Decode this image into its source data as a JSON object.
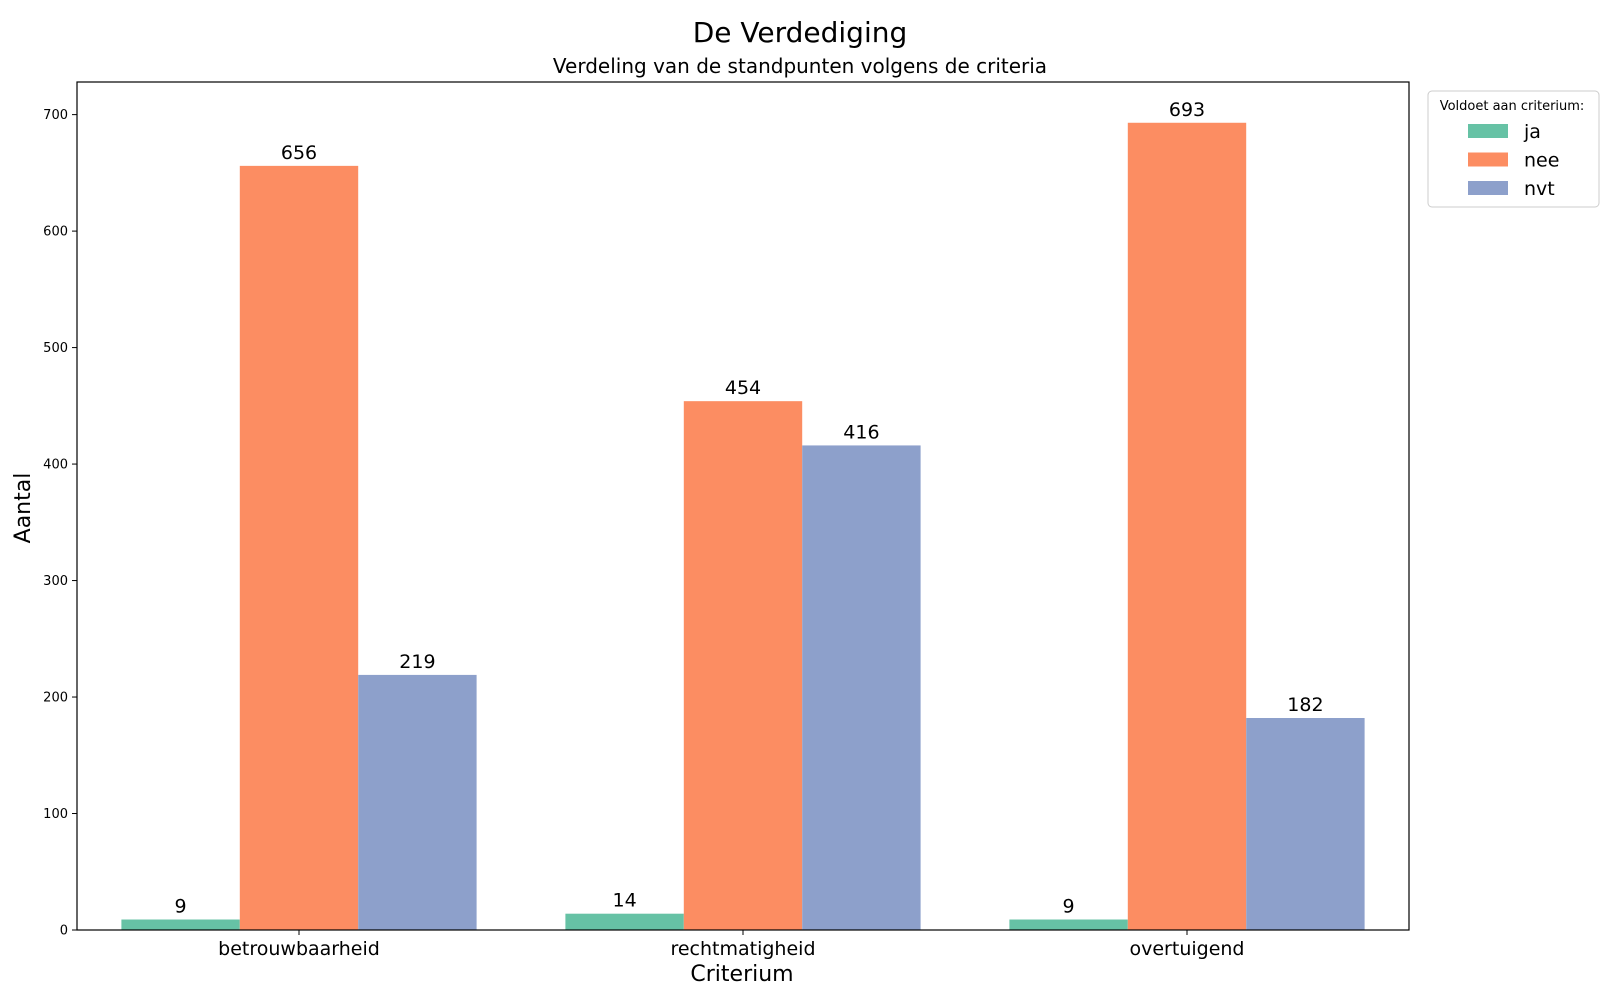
{
  "chart_data": {
    "type": "bar",
    "title": "De Verdediging",
    "subtitle": "Verdeling van de standpunten volgens de criteria",
    "xlabel": "Criterium",
    "ylabel": "Aantal",
    "categories": [
      "betrouwbaarheid",
      "rechtmatigheid",
      "overtuigend"
    ],
    "series": [
      {
        "name": "ja",
        "values": [
          9,
          14,
          9
        ],
        "color": "#66c2a5"
      },
      {
        "name": "nee",
        "values": [
          656,
          454,
          693
        ],
        "color": "#fc8d62"
      },
      {
        "name": "nvt",
        "values": [
          219,
          416,
          182
        ],
        "color": "#8da0cb"
      }
    ],
    "ylim": [
      0,
      728
    ],
    "yticks": [
      0,
      100,
      200,
      300,
      400,
      500,
      600,
      700
    ],
    "grid": false,
    "legend": {
      "title": "Voldoet aan criterium:",
      "placement": "outside-top-right"
    }
  }
}
